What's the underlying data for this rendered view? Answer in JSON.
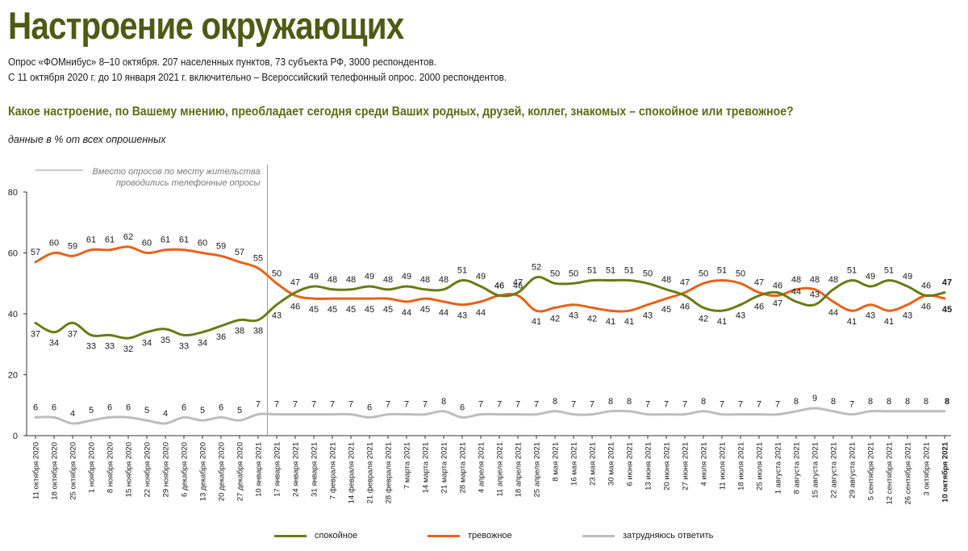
{
  "header": {
    "title": "Настроение окружающих",
    "subtitle1": "Опрос «ФОМнибус» 8–10 октября. 207 населенных пунктов, 73 субъекта РФ, 3000 респондентов.",
    "subtitle2": "С 11 октября 2020 г. до 10 января 2021 г. включительно – Всероссийский телефонный опрос. 2000 респондентов.",
    "question": "Какое настроение, по Вашему мнению, преобладает сегодня среди Ваших родных, друзей, коллег, знакомых – спокойное или тревожное?",
    "unit_note": "данные в % от всех опрошенных"
  },
  "chart_data": {
    "type": "line",
    "ylim": [
      0,
      80
    ],
    "yticks": [
      0,
      20,
      40,
      60,
      80
    ],
    "annotation": [
      "Вместо опросов по месту жительства",
      "проводились телефонные опросы"
    ],
    "annotation_after_index": 12,
    "categories": [
      "11 октября 2020",
      "18 октября 2020",
      "25 октября 2020",
      "1 ноября 2020",
      "8 ноября 2020",
      "15 ноября 2020",
      "22 ноября 2020",
      "29 ноября 2020",
      "6 декабря 2020",
      "13 декабря 2020",
      "20 декабря 2020",
      "27 декабря 2020",
      "10 января 2021",
      "17 января 2021",
      "24 января 2021",
      "31 января 2021",
      "7 февраля 2021",
      "14 февраля 2021",
      "21 февраля 2021",
      "28 февраля 2021",
      "7 марта 2021",
      "14 марта 2021",
      "21 марта 2021",
      "28 марта 2021",
      "4 апреля 2021",
      "11 апреля 2021",
      "18 апреля 2021",
      "25 апреля 2021",
      "8 мая 2021",
      "16 мая 2021",
      "23 мая 2021",
      "30 мая 2021",
      "6 июня 2021",
      "13 июня 2021",
      "20 июня 2021",
      "27 июня 2021",
      "4 июля 2021",
      "11 июля 2021",
      "18 июля 2021",
      "25 июля 2021",
      "1 августа 2021",
      "8 августа 2021",
      "15 августа 2021",
      "22 августа 2021",
      "29 августа 2021",
      "5 сентября 2021",
      "12 сентября 2021",
      "26 сентября 2021",
      "3 октября 2021",
      "10 октября 2021"
    ],
    "series": [
      {
        "name": "спокойное",
        "color": "#6b7a18",
        "label_pos": [
          -1,
          -1,
          -1,
          -1,
          -1,
          -1,
          -1,
          -1,
          -1,
          -1,
          -1,
          -1,
          -1,
          -1,
          1,
          1,
          1,
          1,
          1,
          1,
          1,
          1,
          1,
          1,
          1,
          1,
          1,
          1,
          1,
          1,
          1,
          1,
          1,
          1,
          1,
          -1,
          -1,
          -1,
          -1,
          -1,
          -1,
          1,
          1,
          1,
          1,
          1,
          1,
          1,
          1,
          1
        ],
        "values": [
          37,
          34,
          37,
          33,
          33,
          32,
          34,
          35,
          33,
          34,
          36,
          38,
          38,
          43,
          47,
          49,
          48,
          48,
          49,
          48,
          49,
          48,
          48,
          51,
          49,
          46,
          47,
          52,
          50,
          50,
          51,
          51,
          51,
          50,
          48,
          46,
          42,
          41,
          43,
          46,
          47,
          44,
          43,
          48,
          51,
          49,
          51,
          49,
          46,
          47
        ]
      },
      {
        "name": "тревожное",
        "color": "#e8621a",
        "label_pos": [
          1,
          1,
          1,
          1,
          1,
          1,
          1,
          1,
          1,
          1,
          1,
          1,
          1,
          1,
          -1,
          -1,
          -1,
          -1,
          -1,
          -1,
          -1,
          -1,
          -1,
          -1,
          -1,
          1,
          1,
          -1,
          -1,
          -1,
          -1,
          -1,
          -1,
          -1,
          -1,
          1,
          1,
          1,
          1,
          1,
          1,
          1,
          1,
          -1,
          -1,
          -1,
          -1,
          -1,
          -1,
          -1
        ],
        "values": [
          57,
          60,
          59,
          61,
          61,
          62,
          60,
          61,
          61,
          60,
          59,
          57,
          55,
          50,
          46,
          45,
          45,
          45,
          45,
          45,
          44,
          45,
          44,
          43,
          44,
          46,
          46,
          41,
          42,
          43,
          42,
          41,
          41,
          43,
          45,
          47,
          50,
          51,
          50,
          47,
          46,
          48,
          48,
          44,
          41,
          43,
          41,
          43,
          46,
          45
        ]
      },
      {
        "name": "затрудняюсь ответить",
        "color": "#bdbdbd",
        "label_pos": [
          1,
          1,
          1,
          1,
          1,
          1,
          1,
          1,
          1,
          1,
          1,
          1,
          1,
          1,
          1,
          1,
          1,
          1,
          1,
          1,
          1,
          1,
          1,
          1,
          1,
          1,
          1,
          1,
          1,
          1,
          1,
          1,
          1,
          1,
          1,
          1,
          1,
          1,
          1,
          1,
          1,
          1,
          1,
          1,
          1,
          1,
          1,
          1,
          1,
          1
        ],
        "values": [
          6,
          6,
          4,
          5,
          6,
          6,
          5,
          4,
          6,
          5,
          6,
          5,
          7,
          7,
          7,
          7,
          7,
          7,
          6,
          7,
          7,
          7,
          8,
          6,
          7,
          7,
          7,
          7,
          8,
          7,
          7,
          8,
          8,
          7,
          7,
          7,
          8,
          7,
          7,
          7,
          7,
          8,
          9,
          8,
          7,
          8,
          8,
          8,
          8,
          8
        ]
      }
    ]
  },
  "legend": {
    "items": [
      {
        "label": "спокойное",
        "color": "#6b7a18"
      },
      {
        "label": "тревожное",
        "color": "#e8621a"
      },
      {
        "label": "затрудняюсь ответить",
        "color": "#bdbdbd"
      }
    ]
  }
}
